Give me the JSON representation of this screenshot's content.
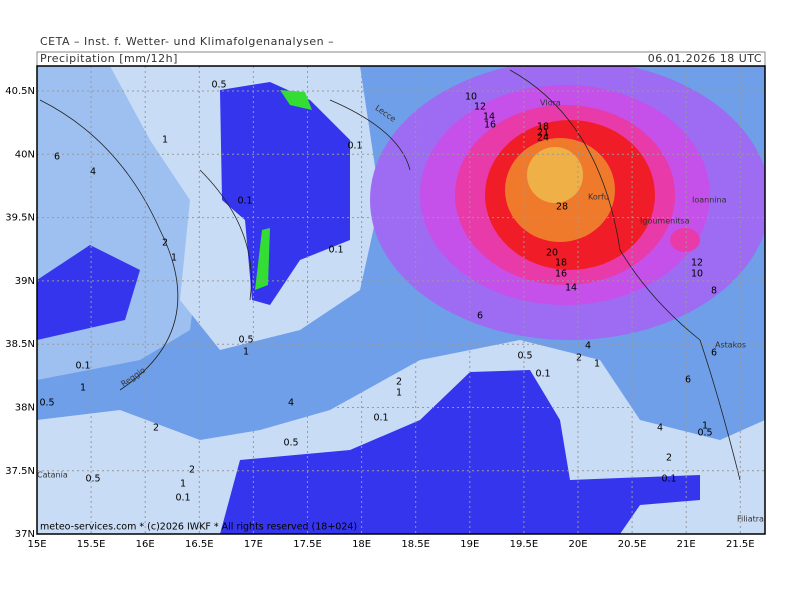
{
  "header": {
    "source": "CETA – Inst. f. Wetter- und Klimafolgenanalysen –",
    "product": "Precipitation [mm/12h]",
    "valid": "06.01.2026 18 UTC"
  },
  "footer": "meteo-services.com * (c)2026 IWKF * All rights reserved (18+024)",
  "axes": {
    "lat_labels": [
      "40.5N",
      "40N",
      "39.5N",
      "39N",
      "38.5N",
      "38N",
      "37.5N",
      "37N"
    ],
    "lon_labels": [
      "15E",
      "15.5E",
      "16E",
      "16.5E",
      "17E",
      "17.5E",
      "18E",
      "18.5E",
      "19E",
      "19.5E",
      "20E",
      "20.5E",
      "21E",
      "21.5E"
    ]
  },
  "places": [
    "Vlora",
    "Lecce",
    "Korfu",
    "Igoumenitsa",
    "Ioannina",
    "Astakos",
    "Reggio",
    "Catania",
    "Filiatra"
  ],
  "contour_labels": [
    "0.5",
    "1",
    "6",
    "4",
    "0.1",
    "0.1",
    "2",
    "1",
    "0.1",
    "10",
    "12",
    "14",
    "16",
    "18",
    "21",
    "24",
    "28",
    "20",
    "18",
    "16",
    "14",
    "6",
    "12",
    "10",
    "8",
    "0.5",
    "1",
    "0.1",
    "0.5",
    "2",
    "4",
    "1",
    "6",
    "6",
    "0.1",
    "2",
    "1",
    "4",
    "0.1",
    "0.5",
    "1",
    "2",
    "0.5",
    "4",
    "1",
    "0.5",
    "2",
    "2",
    "0.5",
    "1",
    "0.1",
    "0.1"
  ]
}
